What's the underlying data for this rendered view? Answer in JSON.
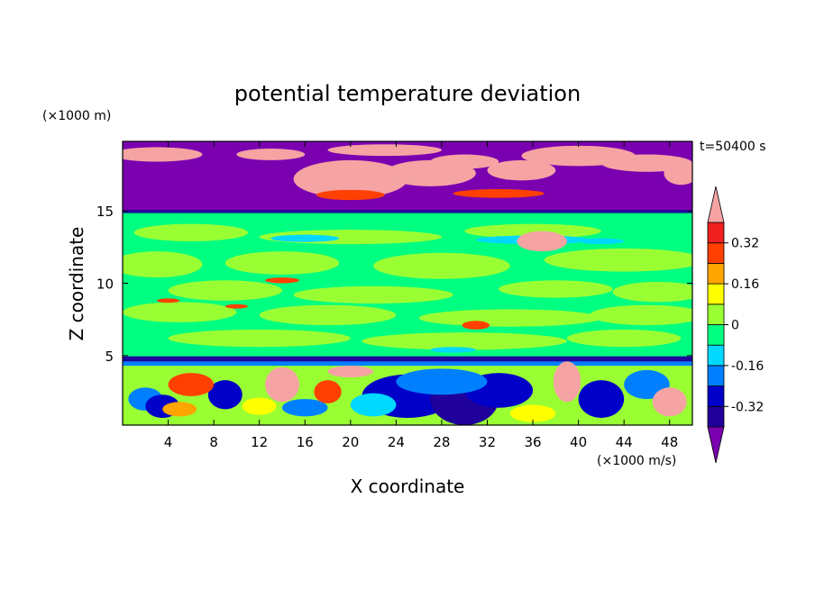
{
  "chart_data": {
    "type": "heatmap",
    "title": "potential temperature deviation",
    "xlabel": "X coordinate",
    "ylabel": "Z coordinate",
    "x_unit": "(×1000 m/s)",
    "y_unit": "(×1000 m)",
    "time_label": "t=50400 s",
    "xlim": [
      0,
      50
    ],
    "ylim": [
      0.2,
      19.8
    ],
    "x_ticks": [
      4,
      8,
      12,
      16,
      20,
      24,
      28,
      32,
      36,
      40,
      44,
      48
    ],
    "y_ticks": [
      5,
      10,
      15
    ],
    "colorbar": {
      "labels": [
        "0.32",
        "0.16",
        "0",
        "-0.16",
        "-0.32"
      ],
      "label_values": [
        0.32,
        0.16,
        0,
        -0.16,
        -0.32
      ],
      "levels": [
        -0.4,
        -0.32,
        -0.24,
        -0.16,
        -0.08,
        0,
        0.08,
        0.16,
        0.24,
        0.32,
        0.4
      ],
      "colors": [
        "#7a00b0",
        "#20009a",
        "#0000c8",
        "#0080ff",
        "#00d8ff",
        "#00ff80",
        "#99ff33",
        "#ffff00",
        "#ffa500",
        "#ff4000",
        "#f02020",
        "#f5a3a3"
      ]
    },
    "regions": [
      {
        "z": [
          15,
          19.8
        ],
        "dominant": "#7a00b0",
        "note": "purple upper layer with pink patches"
      },
      {
        "z": [
          5,
          15
        ],
        "dominant": "#00ff80",
        "note": "green band with light-green streaks"
      },
      {
        "z": [
          4.6,
          5
        ],
        "dominant": "#20009a",
        "note": "dark blue line"
      },
      {
        "z": [
          0.2,
          4.6
        ],
        "dominant": "#99ff33",
        "note": "turbulent mixed layer"
      }
    ]
  }
}
